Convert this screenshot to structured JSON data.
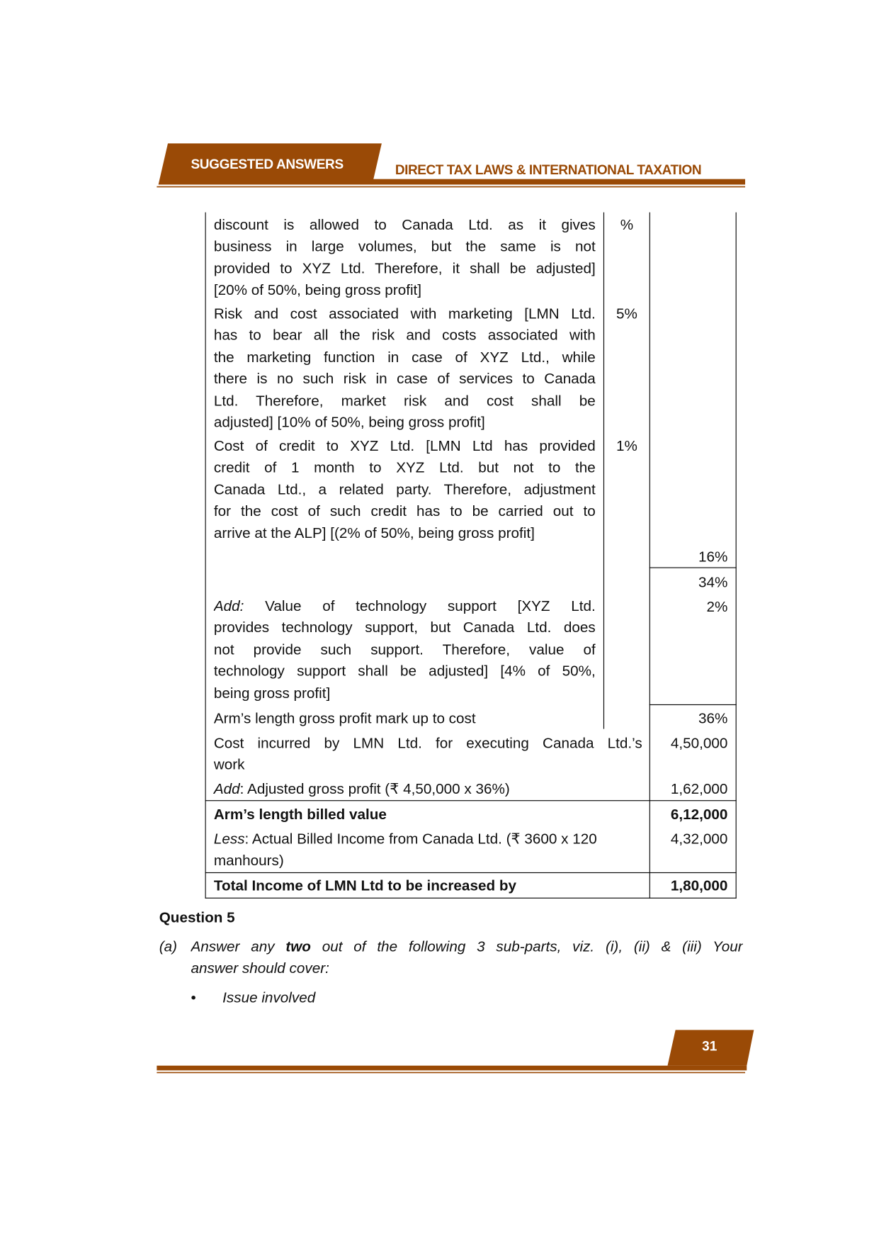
{
  "header": {
    "tab_label": "SUGGESTED ANSWERS",
    "title": "DIRECT TAX LAWS & INTERNATIONAL TAXATION",
    "brand_color": "#9a4a06"
  },
  "table": {
    "rows": [
      {
        "lines": [
          "discount is allowed to Canada Ltd. as it gives",
          "business in large volumes, but the same is not",
          "provided to XYZ Ltd. Therefore, it shall be adjusted]",
          "[20% of 50%, being gross profit]"
        ],
        "pct": "%"
      },
      {
        "lines": [
          "Risk and cost associated with marketing [LMN Ltd.",
          "has to bear all the risk and costs associated with",
          "the marketing function in case of XYZ Ltd., while",
          "there is no such risk in case of services to Canada",
          "Ltd. Therefore, market risk and cost shall be",
          "adjusted] [10% of 50%, being gross profit]"
        ],
        "pct": "5%"
      },
      {
        "lines": [
          "Cost of credit to XYZ Ltd. [LMN Ltd has provided",
          "credit of 1 month to XYZ Ltd. but not to the",
          "Canada Ltd., a related party. Therefore, adjustment",
          "for the cost of such credit has to be carried out to",
          "arrive at the ALP] [(2% of 50%, being gross profit]"
        ],
        "pct": "1%"
      }
    ],
    "subtotal": "16%",
    "net": "34%",
    "add_tech": {
      "prefix": "Add:",
      "lines": [
        "Value of technology support [XYZ Ltd.",
        "provides technology support, but Canada Ltd. does",
        "not provide such support. Therefore, value of",
        "technology support shall be adjusted] [4% of 50%,",
        "being gross profit]"
      ],
      "value": "2%"
    },
    "markup": {
      "label": "Arm’s length gross profit mark up to cost",
      "value": "36%"
    },
    "cost": {
      "lines": [
        "Cost incurred by LMN Ltd. for executing Canada Ltd.’s",
        "work"
      ],
      "value": "4,50,000"
    },
    "adjusted": {
      "prefix": "Add",
      "label": ": Adjusted gross profit (₹ 4,50,000 x 36%)",
      "value": "1,62,000"
    },
    "billed": {
      "label": "Arm’s length billed value",
      "value": "6,12,000"
    },
    "less": {
      "prefix": "Less",
      "line1": ": Actual Billed Income from Canada Ltd. (₹ 3600 x 120",
      "line2": "manhours)",
      "value": "4,32,000"
    },
    "total": {
      "label": "Total Income of LMN Ltd to be increased by",
      "value": "1,80,000"
    }
  },
  "question": {
    "heading": "Question 5",
    "part_label": "(a)",
    "line1_a": "Answer any",
    "line1_bold": "two",
    "line1_b": "out of the following 3 sub-parts, viz. (i), (ii) & (iii) Your",
    "line2": "answer should cover:",
    "bullets": [
      "Issue involved"
    ]
  },
  "footer": {
    "page_number": "31"
  }
}
